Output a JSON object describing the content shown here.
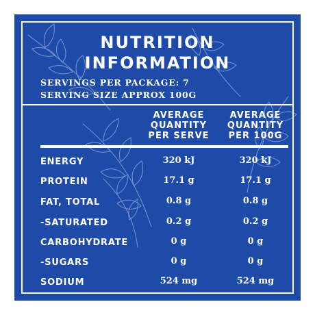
{
  "title_line1": "NUTRITION",
  "title_line2": "INFORMATION",
  "servings_per_package": "SERVINGS PER PACKAGE: 7",
  "serving_size": "SERVING SIZE APPROX 100G",
  "columns": {
    "per_serve": [
      "AVERAGE",
      "QUANTITY",
      "PER SERVE"
    ],
    "per_100g": [
      "AVERAGE",
      "QUANTITY",
      "PER 100G"
    ]
  },
  "rows": [
    {
      "label": "ENERGY",
      "per_serve": "320 kJ",
      "per_100g": "320 kJ"
    },
    {
      "label": "PROTEIN",
      "per_serve": "17.1 g",
      "per_100g": "17.1 g"
    },
    {
      "label": "FAT, TOTAL",
      "per_serve": "0.8 g",
      "per_100g": "0.8 g"
    },
    {
      "label": "-SATURATED",
      "per_serve": "0.2 g",
      "per_100g": "0.2 g"
    },
    {
      "label": "CARBOHYDRATE",
      "per_serve": "0 g",
      "per_100g": "0 g"
    },
    {
      "label": "-SUGARS",
      "per_serve": "0 g",
      "per_100g": "0 g"
    },
    {
      "label": "SODIUM",
      "per_serve": "524 mg",
      "per_100g": "524 mg"
    }
  ],
  "colors": {
    "panel_blue": "#1e4aa8",
    "text": "#ffffff",
    "foliage": "#8fa8d8"
  }
}
